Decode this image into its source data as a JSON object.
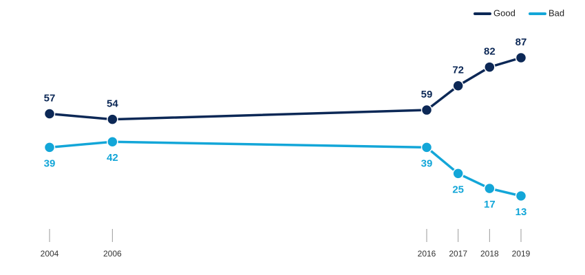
{
  "chart_data": {
    "type": "line",
    "x": [
      2004,
      2006,
      2016,
      2017,
      2018,
      2019
    ],
    "xlim": [
      2004,
      2019
    ],
    "xticks": [
      2004,
      2006,
      2016,
      2017,
      2018,
      2019
    ],
    "series": [
      {
        "name": "Good",
        "color": "#0c2856",
        "values": [
          57,
          54,
          59,
          72,
          82,
          87
        ]
      },
      {
        "name": "Bad",
        "color": "#13a6d8",
        "values": [
          39,
          42,
          39,
          25,
          17,
          13
        ]
      }
    ],
    "legend": "top-right"
  }
}
